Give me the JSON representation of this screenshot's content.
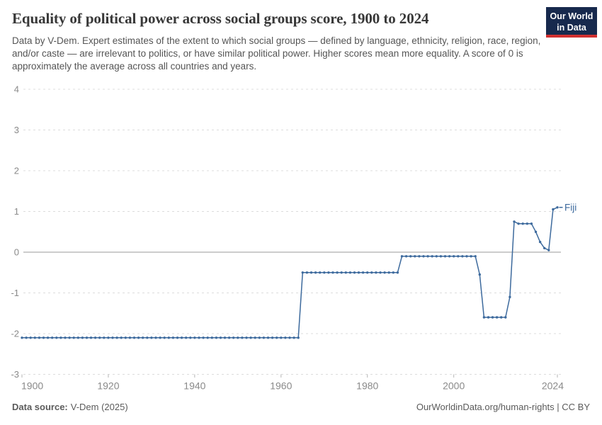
{
  "header": {
    "title": "Equality of political power across social groups score, 1900 to 2024",
    "subtitle": "Data by V-Dem. Expert estimates of the extent to which social groups — defined by language, ethnicity, religion, race, region, and/or caste — are irrelevant to politics, or have similar political power. Higher scores mean more equality. A score of 0 is approximately the average across all countries and years.",
    "logo": {
      "line1": "Our World",
      "line2": "in Data",
      "bg_color": "#17294d",
      "stripe_color": "#d13030"
    }
  },
  "chart_data": {
    "type": "line",
    "title": "Equality of political power across social groups score, 1900 to 2024",
    "xlabel": "",
    "ylabel": "",
    "xlim": [
      1900,
      2024
    ],
    "ylim": [
      -3,
      4
    ],
    "x_ticks": [
      1900,
      1920,
      1940,
      1960,
      1980,
      2000,
      2024
    ],
    "y_ticks": [
      4,
      3,
      2,
      1,
      0,
      -1,
      -2,
      -3
    ],
    "grid": "horizontal dashed, solid zero line",
    "legend_position": "end-of-line label",
    "x_start_year": 1900,
    "series": [
      {
        "name": "Fiji",
        "color": "#3d6a9d",
        "values": [
          -2.1,
          -2.1,
          -2.1,
          -2.1,
          -2.1,
          -2.1,
          -2.1,
          -2.1,
          -2.1,
          -2.1,
          -2.1,
          -2.1,
          -2.1,
          -2.1,
          -2.1,
          -2.1,
          -2.1,
          -2.1,
          -2.1,
          -2.1,
          -2.1,
          -2.1,
          -2.1,
          -2.1,
          -2.1,
          -2.1,
          -2.1,
          -2.1,
          -2.1,
          -2.1,
          -2.1,
          -2.1,
          -2.1,
          -2.1,
          -2.1,
          -2.1,
          -2.1,
          -2.1,
          -2.1,
          -2.1,
          -2.1,
          -2.1,
          -2.1,
          -2.1,
          -2.1,
          -2.1,
          -2.1,
          -2.1,
          -2.1,
          -2.1,
          -2.1,
          -2.1,
          -2.1,
          -2.1,
          -2.1,
          -2.1,
          -2.1,
          -2.1,
          -2.1,
          -2.1,
          -2.1,
          -2.1,
          -2.1,
          -2.1,
          -2.1,
          -0.5,
          -0.5,
          -0.5,
          -0.5,
          -0.5,
          -0.5,
          -0.5,
          -0.5,
          -0.5,
          -0.5,
          -0.5,
          -0.5,
          -0.5,
          -0.5,
          -0.5,
          -0.5,
          -0.5,
          -0.5,
          -0.5,
          -0.5,
          -0.5,
          -0.5,
          -0.5,
          -0.1,
          -0.1,
          -0.1,
          -0.1,
          -0.1,
          -0.1,
          -0.1,
          -0.1,
          -0.1,
          -0.1,
          -0.1,
          -0.1,
          -0.1,
          -0.1,
          -0.1,
          -0.1,
          -0.1,
          -0.1,
          -0.55,
          -1.6,
          -1.6,
          -1.6,
          -1.6,
          -1.6,
          -1.6,
          -1.1,
          0.75,
          0.7,
          0.7,
          0.7,
          0.7,
          0.5,
          0.25,
          0.1,
          0.05,
          1.05,
          1.1
        ]
      }
    ],
    "annotations": [
      "Fiji"
    ]
  },
  "axis_style": {
    "label_color": "#8a8a8a",
    "gridline_color": "#dcdcdc",
    "zero_line_color": "#999999",
    "tick_color": "#b5b5b5"
  },
  "footer": {
    "source_label": "Data source:",
    "source_value": "V-Dem (2025)",
    "right_text": "OurWorldinData.org/human-rights | CC BY"
  }
}
